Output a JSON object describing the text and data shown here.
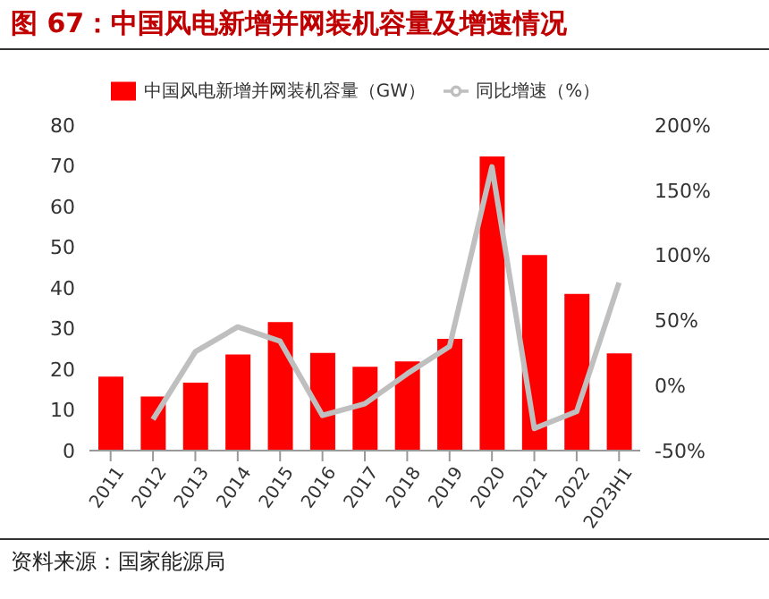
{
  "chart_data": {
    "type": "bar",
    "title": "图 67：中国风电新增并网装机容量及增速情况",
    "categories": [
      "2011",
      "2012",
      "2013",
      "2014",
      "2015",
      "2016",
      "2017",
      "2018",
      "2019",
      "2020",
      "2021",
      "2022",
      "2023H1"
    ],
    "series": [
      {
        "name": "中国风电新增并网装机容量（GW）",
        "color": "#ff0000",
        "values": [
          18.2,
          13.3,
          16.7,
          23.6,
          31.6,
          24,
          20.6,
          21.9,
          27.5,
          72.3,
          48.1,
          38.5,
          23.9
        ]
      },
      {
        "name": "同比增速（%）",
        "type": "line",
        "axis": "y2",
        "color": "#bfbfbf",
        "values": [
          null,
          -26,
          26,
          45,
          34,
          -23,
          -14,
          9,
          30,
          168,
          -33,
          -20,
          79
        ]
      }
    ],
    "ylim": [
      0,
      80
    ],
    "yticks": [
      0,
      10,
      20,
      30,
      40,
      50,
      60,
      70,
      80
    ],
    "y2lim": [
      -50,
      200
    ],
    "y2ticks": [
      {
        "value": -50,
        "label": "-50%"
      },
      {
        "value": 0,
        "label": "0%"
      },
      {
        "value": 50,
        "label": "50%"
      },
      {
        "value": 100,
        "label": "100%"
      },
      {
        "value": 150,
        "label": "150%"
      },
      {
        "value": 200,
        "label": "200%"
      }
    ],
    "legend": "top",
    "grid": false,
    "marker": "none",
    "annotations": [
      "资料来源：国家能源局"
    ]
  }
}
